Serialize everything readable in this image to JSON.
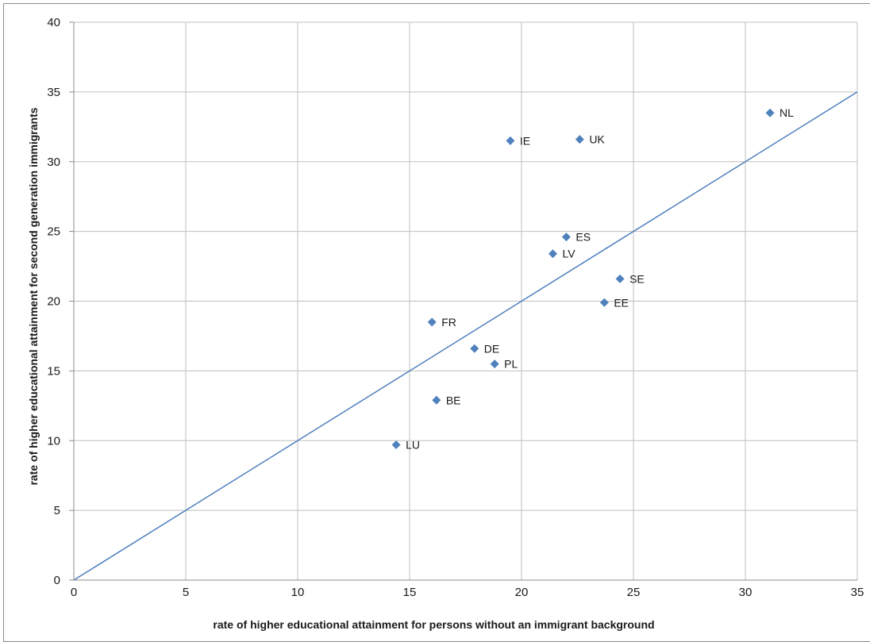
{
  "chart_data": {
    "type": "scatter",
    "title": "",
    "xlabel": "rate of higher educational attainment for persons without an immigrant background",
    "ylabel": "rate of higher educational attainment for second generation immigrants",
    "xlim": [
      0,
      35
    ],
    "ylim": [
      0,
      40
    ],
    "x_ticks": [
      0,
      5,
      10,
      15,
      20,
      25,
      30,
      35
    ],
    "y_ticks": [
      0,
      5,
      10,
      15,
      20,
      25,
      30,
      35,
      40
    ],
    "grid": true,
    "legend": "none",
    "points": [
      {
        "label": "NL",
        "x": 31.1,
        "y": 33.5
      },
      {
        "label": "IE",
        "x": 19.5,
        "y": 31.5
      },
      {
        "label": "UK",
        "x": 22.6,
        "y": 31.6
      },
      {
        "label": "ES",
        "x": 22.0,
        "y": 24.6
      },
      {
        "label": "LV",
        "x": 21.4,
        "y": 23.4
      },
      {
        "label": "SE",
        "x": 24.4,
        "y": 21.6
      },
      {
        "label": "EE",
        "x": 23.7,
        "y": 19.9
      },
      {
        "label": "FR",
        "x": 16.0,
        "y": 18.5
      },
      {
        "label": "DE",
        "x": 17.9,
        "y": 16.6
      },
      {
        "label": "PL",
        "x": 18.8,
        "y": 15.5
      },
      {
        "label": "BE",
        "x": 16.2,
        "y": 12.9
      },
      {
        "label": "LU",
        "x": 14.4,
        "y": 9.7
      }
    ],
    "reference_line": {
      "from": [
        0,
        0
      ],
      "to": [
        35,
        35
      ]
    },
    "colors": {
      "marker": "#4f81bd",
      "line": "#4f81bd",
      "grid": "#bfbfbf"
    }
  }
}
